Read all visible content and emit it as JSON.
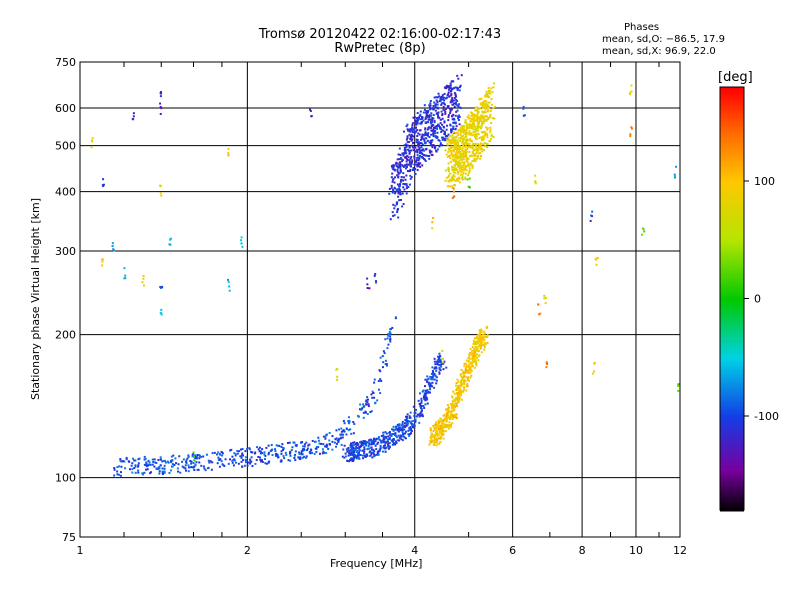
{
  "title_line1": "Tromsø 20120422 02:16:00-02:17:43",
  "title_line2": "RwPretec (8p)",
  "stats": {
    "header": "Phases",
    "line1": "mean, sd,O: −86.5, 17.9",
    "line2": "mean, sd,X:  96.9, 22.0"
  },
  "colorbar": {
    "label": "[deg]",
    "min": -180,
    "max": 180,
    "ticks": [
      100,
      0,
      -100
    ]
  },
  "chart_data": {
    "type": "scatter",
    "title": "Tromsø 20120422 02:16:00-02:17:43",
    "subtitle": "RwPretec (8p)",
    "xlabel": "Frequency [MHz]",
    "ylabel": "Stationary phase Virtual Height [km]",
    "xscale": "log",
    "yscale": "log",
    "xlim": [
      1,
      12
    ],
    "ylim": [
      75,
      750
    ],
    "xticks": [
      1,
      2,
      4,
      6,
      8,
      10,
      12
    ],
    "xtick_labels": [
      "1",
      "2",
      "4",
      "6",
      "8",
      "10",
      "12"
    ],
    "xgrid": [
      2,
      4,
      6,
      8,
      10
    ],
    "yticks": [
      75,
      100,
      200,
      300,
      400,
      500,
      600,
      750
    ],
    "ytick_labels": [
      "75",
      "100",
      "200",
      "300",
      "400",
      "500",
      "600",
      "750"
    ],
    "ygrid": [
      100,
      200,
      300,
      400,
      500,
      600
    ],
    "color_variable": "phase [deg]",
    "series": [
      {
        "trace": "O-mode E/F1 lower trace",
        "phase_mean": -95,
        "points": [
          [
            1.15,
            105
          ],
          [
            1.25,
            106
          ],
          [
            1.35,
            106
          ],
          [
            1.45,
            107
          ],
          [
            1.55,
            107
          ],
          [
            1.65,
            108
          ],
          [
            1.75,
            109
          ],
          [
            1.85,
            110
          ],
          [
            1.95,
            110
          ],
          [
            2.05,
            111
          ],
          [
            2.15,
            112
          ],
          [
            2.3,
            113
          ],
          [
            2.45,
            114
          ],
          [
            2.6,
            115
          ],
          [
            2.75,
            118
          ],
          [
            2.9,
            122
          ],
          [
            3.0,
            125
          ],
          [
            3.1,
            130
          ],
          [
            3.2,
            136
          ],
          [
            3.3,
            142
          ],
          [
            3.4,
            150
          ],
          [
            3.45,
            160
          ],
          [
            3.5,
            172
          ],
          [
            3.55,
            185
          ],
          [
            3.6,
            200
          ],
          [
            3.7,
            215
          ]
        ]
      },
      {
        "trace": "O-mode upper layer cusp",
        "phase_mean": -100,
        "points": [
          [
            3.0,
            113
          ],
          [
            3.2,
            114
          ],
          [
            3.4,
            116
          ],
          [
            3.6,
            120
          ],
          [
            3.8,
            126
          ],
          [
            4.0,
            132
          ],
          [
            4.1,
            140
          ],
          [
            4.2,
            150
          ],
          [
            4.3,
            162
          ],
          [
            4.4,
            172
          ],
          [
            4.5,
            178
          ]
        ]
      },
      {
        "trace": "X-mode lower trace",
        "phase_mean": 96,
        "points": [
          [
            4.3,
            122
          ],
          [
            4.4,
            124
          ],
          [
            4.5,
            128
          ],
          [
            4.6,
            133
          ],
          [
            4.7,
            140
          ],
          [
            4.8,
            150
          ],
          [
            4.9,
            160
          ],
          [
            5.0,
            170
          ],
          [
            5.1,
            180
          ],
          [
            5.2,
            190
          ],
          [
            5.35,
            200
          ]
        ]
      },
      {
        "trace": "O-mode F2 layer",
        "phase_mean": -110,
        "points": [
          [
            3.65,
            395
          ],
          [
            3.7,
            410
          ],
          [
            3.75,
            425
          ],
          [
            3.8,
            445
          ],
          [
            3.85,
            465
          ],
          [
            3.9,
            485
          ],
          [
            4.0,
            505
          ],
          [
            4.1,
            520
          ],
          [
            4.2,
            535
          ],
          [
            4.3,
            550
          ],
          [
            4.4,
            565
          ],
          [
            4.5,
            580
          ],
          [
            4.6,
            595
          ],
          [
            4.7,
            610
          ],
          [
            4.8,
            625
          ]
        ]
      },
      {
        "trace": "X-mode F2 layer",
        "phase_mean": 85,
        "points": [
          [
            4.6,
            460
          ],
          [
            4.75,
            475
          ],
          [
            4.9,
            490
          ],
          [
            5.0,
            505
          ],
          [
            5.1,
            520
          ],
          [
            5.2,
            540
          ],
          [
            5.3,
            560
          ],
          [
            5.4,
            580
          ],
          [
            5.5,
            600
          ]
        ]
      },
      {
        "trace": "scattered echoes",
        "phase_mean": 0,
        "points": [
          [
            1.05,
            510
          ],
          [
            1.1,
            420
          ],
          [
            1.1,
            280
          ],
          [
            1.15,
            305
          ],
          [
            1.2,
            270
          ],
          [
            1.25,
            570
          ],
          [
            1.3,
            260
          ],
          [
            1.4,
            640
          ],
          [
            1.4,
            600
          ],
          [
            1.4,
            400
          ],
          [
            1.4,
            250
          ],
          [
            1.4,
            225
          ],
          [
            1.45,
            310
          ],
          [
            1.6,
            110
          ],
          [
            1.85,
            480
          ],
          [
            1.85,
            255
          ],
          [
            1.95,
            315
          ],
          [
            2.6,
            590
          ],
          [
            2.9,
            165
          ],
          [
            3.3,
            255
          ],
          [
            3.4,
            265
          ],
          [
            4.3,
            345
          ],
          [
            4.5,
            180
          ],
          [
            4.7,
            400
          ],
          [
            5.0,
            420
          ],
          [
            6.3,
            590
          ],
          [
            6.6,
            420
          ],
          [
            6.7,
            225
          ],
          [
            6.85,
            240
          ],
          [
            6.9,
            170
          ],
          [
            8.3,
            355
          ],
          [
            8.4,
            170
          ],
          [
            8.5,
            285
          ],
          [
            9.8,
            650
          ],
          [
            9.8,
            540
          ],
          [
            10.3,
            325
          ],
          [
            11.8,
            440
          ],
          [
            11.9,
            155
          ]
        ]
      }
    ]
  }
}
